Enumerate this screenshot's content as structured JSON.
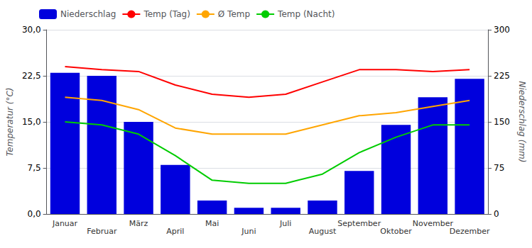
{
  "chart_data": {
    "type": "bar",
    "categories": [
      "Januar",
      "Februar",
      "März",
      "April",
      "Mai",
      "Juni",
      "Juli",
      "August",
      "September",
      "Oktober",
      "November",
      "Dezember"
    ],
    "series": [
      {
        "name": "Niederschlag",
        "type": "bar",
        "color": "#0000dd",
        "axis": "y2",
        "values": [
          230,
          225,
          150,
          80,
          22,
          10,
          10,
          22,
          70,
          145,
          190,
          220
        ]
      },
      {
        "name": "Temp (Tag)",
        "type": "line",
        "color": "#ff0000",
        "values": [
          24.0,
          23.5,
          23.2,
          21.0,
          19.5,
          19.0,
          19.5,
          21.5,
          23.5,
          23.5,
          23.2,
          23.5
        ]
      },
      {
        "name": "Ø Temp",
        "type": "line",
        "color": "#ffa500",
        "values": [
          19.0,
          18.5,
          17.0,
          14.0,
          13.0,
          13.0,
          13.0,
          14.5,
          16.0,
          16.5,
          17.5,
          18.5
        ]
      },
      {
        "name": "Temp (Nacht)",
        "type": "line",
        "color": "#00cc00",
        "values": [
          15.0,
          14.5,
          13.0,
          9.5,
          5.5,
          5.0,
          5.0,
          6.5,
          10.0,
          12.5,
          14.5,
          14.5
        ]
      }
    ],
    "ylabel": "Temperatur (°C)",
    "y2label": "Niederschlag (mm)",
    "ylim": [
      0,
      30
    ],
    "yticks": [
      {
        "value": 0,
        "label": "0,0"
      },
      {
        "value": 7.5,
        "label": "7,5"
      },
      {
        "value": 15,
        "label": "15,0"
      },
      {
        "value": 22.5,
        "label": "22,5"
      },
      {
        "value": 30,
        "label": "30,0"
      }
    ],
    "y2lim": [
      0,
      300
    ],
    "y2ticks": [
      0,
      75,
      150,
      225,
      300
    ],
    "grid": true,
    "legend": "upper left"
  }
}
